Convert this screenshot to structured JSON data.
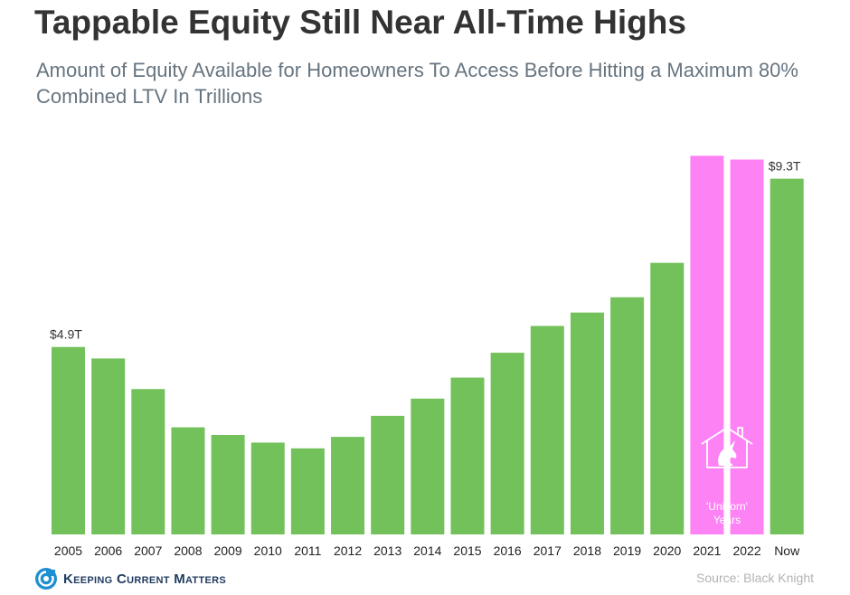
{
  "title": "Tappable Equity Still Near All-Time Highs",
  "subtitle": "Amount of Equity Available for Homeowners To Access Before Hitting a Maximum 80% Combined LTV In Trillions",
  "source": "Source: Black Knight",
  "logo": {
    "text": "Keeping Current Matters",
    "icon": "kcm-spiral-icon"
  },
  "colors": {
    "bar": "#72c15a",
    "highlight": "#fd83f5",
    "title": "#333333",
    "subtitle": "#677580"
  },
  "unicorn_label": "'Unicorn' Years",
  "unicorn_icons": [
    "house-outline-icon",
    "unicorn-icon"
  ],
  "chart_data": {
    "type": "bar",
    "categories": [
      "2005",
      "2006",
      "2007",
      "2008",
      "2009",
      "2010",
      "2011",
      "2012",
      "2013",
      "2014",
      "2015",
      "2016",
      "2017",
      "2018",
      "2019",
      "2020",
      "2021",
      "2022",
      "Now"
    ],
    "values": [
      4.9,
      4.6,
      3.8,
      2.8,
      2.6,
      2.4,
      2.25,
      2.55,
      3.1,
      3.55,
      4.1,
      4.75,
      5.45,
      5.8,
      6.2,
      7.1,
      9.9,
      9.8,
      9.3
    ],
    "highlight_categories": [
      "2021",
      "2022"
    ],
    "data_labels": [
      {
        "category": "2005",
        "text": "$4.9T"
      },
      {
        "category": "Now",
        "text": "$9.3T"
      }
    ],
    "ylim": [
      0,
      10
    ],
    "grid": false,
    "legend": "none",
    "xlabel": "",
    "ylabel": ""
  }
}
